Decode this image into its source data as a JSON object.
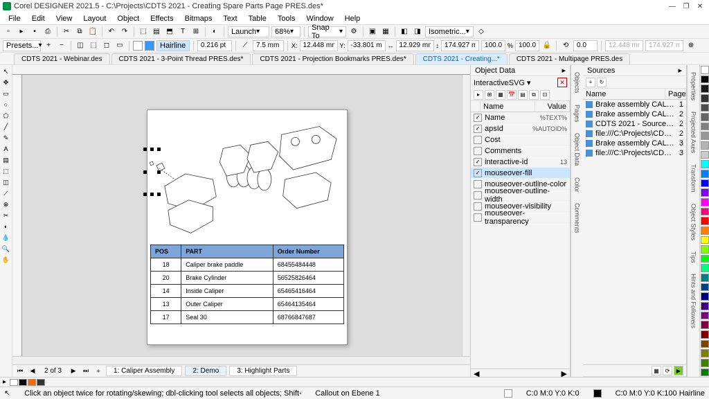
{
  "app": {
    "title": "Corel DESIGNER 2021.5 - C:\\Projects\\CDTS 2021 - Creating Spare Parts Page PRES.des*",
    "menus": [
      "File",
      "Edit",
      "View",
      "Layout",
      "Object",
      "Effects",
      "Bitmaps",
      "Text",
      "Table",
      "Tools",
      "Window",
      "Help"
    ]
  },
  "toolbar1": {
    "launch": "Launch",
    "zoom": "68%",
    "snap": "Snap To",
    "projection": "Isometric..."
  },
  "toolbar2": {
    "presets": "Presets...",
    "hairline": "Hairline",
    "width": "0.216 pt",
    "mm": "7.5 mm",
    "x": "12.448 mm",
    "y": "-33.801 mm",
    "w": "12.929 mm",
    "h": "174.927 mm",
    "sx": "100.0",
    "sy": "100.0",
    "rot": "0.0",
    "x2": "12.448 mm",
    "y2": "174.927 mm",
    "units": "%"
  },
  "doctabs": [
    {
      "label": "CDTS 2021 - Webinar.des",
      "active": false
    },
    {
      "label": "CDTS 2021 - 3-Point Thread PRES.des*",
      "active": false
    },
    {
      "label": "CDTS 2021 - Projection Bookmarks PRES.des*",
      "active": false
    },
    {
      "label": "CDTS 2021 - Creating...*",
      "active": true
    },
    {
      "label": "CDTS 2021 - Multipage PRES.des",
      "active": false
    }
  ],
  "parts_table": {
    "headers": [
      "POS",
      "PART",
      "Order Number"
    ],
    "rows": [
      [
        "18",
        "Caliper brake paddle",
        "68455484448"
      ],
      [
        "20",
        "Brake Cylinder",
        "56525826464"
      ],
      [
        "14",
        "Inside Caliper",
        "65465416464"
      ],
      [
        "13",
        "Outer Caliper",
        "65464135464"
      ],
      [
        "17",
        "Seal 30",
        "68766847687"
      ]
    ],
    "header_bg": "#7da7d9"
  },
  "page_nav": {
    "counter": "2 of 3",
    "tabs": [
      {
        "label": "1: Caliper Assembly",
        "active": false
      },
      {
        "label": "2: Demo",
        "active": true
      },
      {
        "label": "3: Highlight Parts",
        "active": false
      }
    ]
  },
  "object_data": {
    "title": "Object Data",
    "dropdown": "InteractiveSVG",
    "cols": [
      "Name",
      "Value"
    ],
    "fields": [
      {
        "name": "Name",
        "value": "%TEXT%",
        "checked": true,
        "sel": false
      },
      {
        "name": "apsId",
        "value": "%AUTOID%",
        "checked": true,
        "sel": false
      },
      {
        "name": "Cost",
        "value": "",
        "checked": false,
        "sel": false
      },
      {
        "name": "Comments",
        "value": "",
        "checked": false,
        "sel": false
      },
      {
        "name": "interactive-id",
        "value": "13",
        "checked": true,
        "sel": false
      },
      {
        "name": "mouseover-fill",
        "value": "",
        "checked": true,
        "sel": true
      },
      {
        "name": "mouseover-outline-color",
        "value": "",
        "checked": false,
        "sel": false
      },
      {
        "name": "mouseover-outline-width",
        "value": "",
        "checked": false,
        "sel": false
      },
      {
        "name": "mouseover-visibility",
        "value": "",
        "checked": false,
        "sel": false
      },
      {
        "name": "mouseover-transparency",
        "value": "",
        "checked": false,
        "sel": false
      }
    ]
  },
  "sources": {
    "title": "Sources",
    "cols": [
      "Name",
      "Page"
    ],
    "items": [
      {
        "name": "Brake assembly CALIPER LIST.xls",
        "page": "1"
      },
      {
        "name": "Brake assembly CALIPER LIST.xls",
        "page": "2"
      },
      {
        "name": "CDTS 2021 - Sources Docker PRES...",
        "page": "2"
      },
      {
        "name": "file:///C:\\Projects\\CDTS 2021 - Crea...",
        "page": "2"
      },
      {
        "name": "Brake assembly CALIPER LIST.xls",
        "page": "3"
      },
      {
        "name": "file:///C:\\Projects\\CDTS 2021 - Crea...",
        "page": "3"
      }
    ]
  },
  "vtabs_left": [
    "Objects",
    "Pages",
    "Object Data",
    "Color",
    "Comments"
  ],
  "vtabs_right": [
    "Properties",
    "Projected Axes",
    "Transform",
    "Object Styles",
    "Tips",
    "Hints and Followers"
  ],
  "statusbar": {
    "hint": "Click an object twice for rotating/skewing; dbl-clicking tool selects all objects; Shift+click multi-selects; Alt+click digs; Ctrl+click selects in a group",
    "layer": "Callout on Ebene 1",
    "fill": "C:0 M:0 Y:0 K:0",
    "outline": "C:0 M:0 Y:0 K:100  Hairline"
  },
  "palette_colors": [
    "#ffffff",
    "#000000",
    "#1a1a1a",
    "#333333",
    "#4d4d4d",
    "#666666",
    "#808080",
    "#999999",
    "#b3b3b3",
    "#cccccc",
    "#00ffff",
    "#0080ff",
    "#0000ff",
    "#8000ff",
    "#ff00ff",
    "#ff0080",
    "#ff0000",
    "#ff8000",
    "#ffff00",
    "#80ff00",
    "#00ff00",
    "#00ff80",
    "#008080",
    "#004080",
    "#000080",
    "#400080",
    "#800080",
    "#800040",
    "#800000",
    "#804000",
    "#808000",
    "#408000",
    "#008000"
  ],
  "bottom_colors": [
    "#ffffff",
    "#000000",
    "#ff6600",
    "#333333"
  ]
}
